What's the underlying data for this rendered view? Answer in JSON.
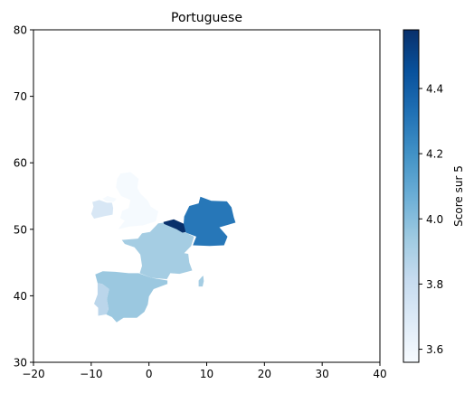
{
  "chart_data": {
    "type": "choropleth",
    "title": "Portuguese",
    "xlim": [
      -20,
      40
    ],
    "ylim": [
      30,
      80
    ],
    "x_ticks": [
      -20,
      -10,
      0,
      10,
      20,
      30,
      40
    ],
    "y_ticks": [
      30,
      40,
      50,
      60,
      70,
      80
    ],
    "colorbar": {
      "label": "Score sur 5",
      "range": [
        3.56,
        4.58
      ],
      "ticks": [
        "3.6",
        "3.8",
        "4.0",
        "4.2",
        "4.4"
      ],
      "tick_values": [
        3.6,
        3.8,
        4.0,
        4.2,
        4.4
      ],
      "colormap": "Blues",
      "stops": [
        "#f7fbff",
        "#deebf7",
        "#c6dbef",
        "#9ecae1",
        "#6baed6",
        "#4292c6",
        "#2171b5",
        "#08519c",
        "#08306b"
      ]
    },
    "regions": [
      {
        "id": "united-kingdom",
        "value": 3.57,
        "polygon": [
          [
            -5.3,
            50.0
          ],
          [
            -3.5,
            50.4
          ],
          [
            -1.0,
            50.6
          ],
          [
            1.2,
            51.2
          ],
          [
            1.6,
            52.7
          ],
          [
            0.3,
            53.4
          ],
          [
            -0.2,
            54.3
          ],
          [
            -1.5,
            55.4
          ],
          [
            -2.0,
            56.2
          ],
          [
            -1.8,
            57.6
          ],
          [
            -3.2,
            58.6
          ],
          [
            -4.9,
            58.4
          ],
          [
            -5.5,
            57.6
          ],
          [
            -5.7,
            56.3
          ],
          [
            -4.8,
            55.0
          ],
          [
            -3.2,
            54.4
          ],
          [
            -3.5,
            53.2
          ],
          [
            -4.6,
            52.8
          ],
          [
            -5.0,
            51.7
          ],
          [
            -4.2,
            51.3
          ]
        ]
      },
      {
        "id": "northern-ireland",
        "value": 3.57,
        "polygon": [
          [
            -7.2,
            55.0
          ],
          [
            -5.6,
            54.6
          ],
          [
            -6.1,
            54.1
          ],
          [
            -7.4,
            54.2
          ],
          [
            -8.0,
            54.6
          ]
        ]
      },
      {
        "id": "ireland",
        "value": 3.72,
        "polygon": [
          [
            -6.2,
            53.2
          ],
          [
            -6.3,
            52.2
          ],
          [
            -7.6,
            52.0
          ],
          [
            -9.5,
            51.6
          ],
          [
            -10.0,
            52.3
          ],
          [
            -9.6,
            53.4
          ],
          [
            -9.8,
            54.1
          ],
          [
            -8.6,
            54.4
          ],
          [
            -7.3,
            54.0
          ],
          [
            -6.4,
            54.0
          ]
        ]
      },
      {
        "id": "france",
        "value": 3.92,
        "polygon": [
          [
            -4.7,
            48.4
          ],
          [
            -4.2,
            47.8
          ],
          [
            -2.5,
            47.3
          ],
          [
            -1.5,
            46.2
          ],
          [
            -1.2,
            44.5
          ],
          [
            -1.6,
            43.4
          ],
          [
            0.4,
            42.7
          ],
          [
            3.1,
            42.5
          ],
          [
            3.7,
            43.4
          ],
          [
            5.3,
            43.3
          ],
          [
            7.5,
            43.8
          ],
          [
            7.0,
            45.0
          ],
          [
            6.8,
            46.3
          ],
          [
            6.1,
            46.4
          ],
          [
            7.3,
            47.5
          ],
          [
            7.8,
            48.9
          ],
          [
            6.4,
            49.5
          ],
          [
            4.8,
            50.0
          ],
          [
            2.6,
            51.0
          ],
          [
            1.6,
            50.9
          ],
          [
            0.2,
            49.6
          ],
          [
            -1.2,
            49.4
          ],
          [
            -1.9,
            48.6
          ]
        ]
      },
      {
        "id": "corsica",
        "value": 3.92,
        "polygon": [
          [
            8.6,
            41.4
          ],
          [
            9.3,
            41.4
          ],
          [
            9.5,
            42.2
          ],
          [
            9.4,
            43.0
          ],
          [
            9.2,
            42.9
          ],
          [
            8.6,
            42.3
          ]
        ]
      },
      {
        "id": "belgium-luxembourg",
        "value": 4.58,
        "polygon": [
          [
            2.5,
            51.1
          ],
          [
            4.3,
            51.5
          ],
          [
            6.1,
            50.8
          ],
          [
            6.4,
            49.6
          ],
          [
            5.8,
            49.5
          ],
          [
            4.8,
            50.0
          ],
          [
            2.6,
            50.8
          ]
        ]
      },
      {
        "id": "germany",
        "value": 4.3,
        "polygon": [
          [
            6.1,
            51.9
          ],
          [
            7.0,
            53.5
          ],
          [
            8.6,
            53.9
          ],
          [
            8.9,
            54.9
          ],
          [
            10.8,
            54.3
          ],
          [
            13.5,
            54.2
          ],
          [
            14.3,
            53.3
          ],
          [
            14.7,
            51.8
          ],
          [
            15.0,
            51.0
          ],
          [
            12.2,
            50.3
          ],
          [
            13.6,
            48.9
          ],
          [
            13.0,
            47.6
          ],
          [
            10.5,
            47.5
          ],
          [
            7.6,
            47.6
          ],
          [
            8.2,
            48.9
          ],
          [
            6.4,
            49.5
          ],
          [
            6.0,
            50.8
          ]
        ]
      },
      {
        "id": "spain",
        "value": 3.95,
        "polygon": [
          [
            -9.3,
            43.2
          ],
          [
            -8.0,
            43.7
          ],
          [
            -5.8,
            43.6
          ],
          [
            -3.5,
            43.4
          ],
          [
            -1.8,
            43.4
          ],
          [
            0.4,
            42.7
          ],
          [
            3.2,
            42.3
          ],
          [
            3.2,
            41.8
          ],
          [
            0.8,
            41.0
          ],
          [
            0.0,
            39.9
          ],
          [
            -0.2,
            38.7
          ],
          [
            -0.8,
            37.6
          ],
          [
            -2.1,
            36.7
          ],
          [
            -4.4,
            36.7
          ],
          [
            -5.6,
            36.0
          ],
          [
            -6.4,
            36.8
          ],
          [
            -7.4,
            37.2
          ],
          [
            -7.0,
            38.0
          ],
          [
            -7.3,
            39.5
          ],
          [
            -6.9,
            41.0
          ],
          [
            -8.1,
            41.8
          ],
          [
            -8.9,
            41.9
          ]
        ]
      },
      {
        "id": "portugal",
        "value": 3.85,
        "polygon": [
          [
            -8.9,
            41.9
          ],
          [
            -8.1,
            41.8
          ],
          [
            -6.9,
            41.0
          ],
          [
            -7.3,
            39.5
          ],
          [
            -7.0,
            38.0
          ],
          [
            -7.4,
            37.2
          ],
          [
            -8.8,
            37.0
          ],
          [
            -8.8,
            38.2
          ],
          [
            -9.5,
            38.8
          ],
          [
            -8.9,
            40.2
          ]
        ]
      }
    ]
  }
}
